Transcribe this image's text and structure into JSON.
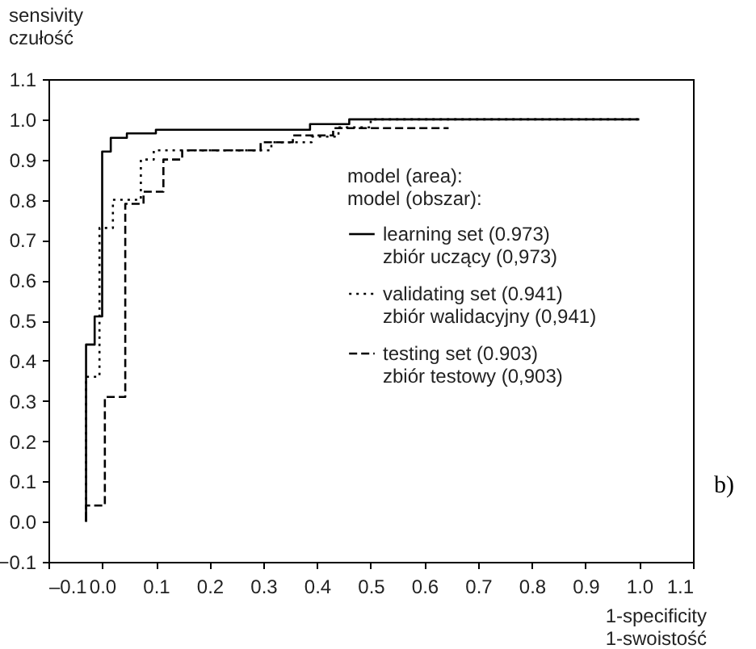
{
  "chart_data": {
    "type": "step",
    "ylabel": "sensivity\nczułość",
    "xlabel": "1-specificity\n1-swoistość",
    "legend_title": "model (area):\nmodel (obszar):",
    "annotations": [
      "b)"
    ],
    "xlim": [
      -0.1,
      1.1
    ],
    "ylim": [
      -0.1,
      1.1
    ],
    "xticks": [
      {
        "value": -0.1,
        "label": "–0.1"
      },
      {
        "value": 0,
        "label": "0.0"
      },
      0.1,
      0.2,
      0.3,
      0.4,
      0.5,
      0.6,
      0.7,
      0.8,
      0.9,
      {
        "value": 1,
        "label": "1.0"
      },
      1.1
    ],
    "yticks": [
      -0.1,
      {
        "value": 0,
        "label": "0.0"
      },
      0.1,
      0.2,
      0.3,
      0.4,
      0.5,
      0.6,
      0.7,
      0.8,
      0.9,
      {
        "value": 1,
        "label": "1.0"
      },
      1.1
    ],
    "grid": false,
    "legend": "right",
    "series": [
      {
        "name": "learning set (0.973)\nzbiór uczący (0,973)",
        "color": "#000000",
        "line_style": "solid",
        "x": [
          -0.03,
          -0.03,
          -0.014,
          0.0,
          0.016,
          0.046,
          0.1,
          0.387,
          0.46,
          1.0
        ],
        "values": [
          0.0,
          0.44,
          0.51,
          0.92,
          0.954,
          0.965,
          0.974,
          0.988,
          1.0,
          1.0
        ]
      },
      {
        "name": "validating set  (0.941)\nzbiór walidacyjny (0,941)",
        "color": "#000000",
        "line_style": "dotted",
        "x": [
          -0.03,
          -0.03,
          -0.005,
          0.02,
          0.072,
          0.096,
          0.315,
          0.39,
          0.44,
          0.5,
          1.0
        ],
        "values": [
          0.0,
          0.36,
          0.73,
          0.8,
          0.9,
          0.923,
          0.943,
          0.957,
          0.98,
          1.0,
          1.0
        ]
      },
      {
        "name": "testing set  (0.903)\nzbiór testowy (0,903)",
        "color": "#000000",
        "line_style": "dashed",
        "x": [
          -0.03,
          -0.03,
          0.005,
          0.043,
          0.077,
          0.114,
          0.149,
          0.295,
          0.355,
          0.43,
          0.645
        ],
        "values": [
          0.0,
          0.04,
          0.31,
          0.79,
          0.82,
          0.9,
          0.923,
          0.943,
          0.96,
          0.978,
          0.978
        ]
      }
    ]
  }
}
